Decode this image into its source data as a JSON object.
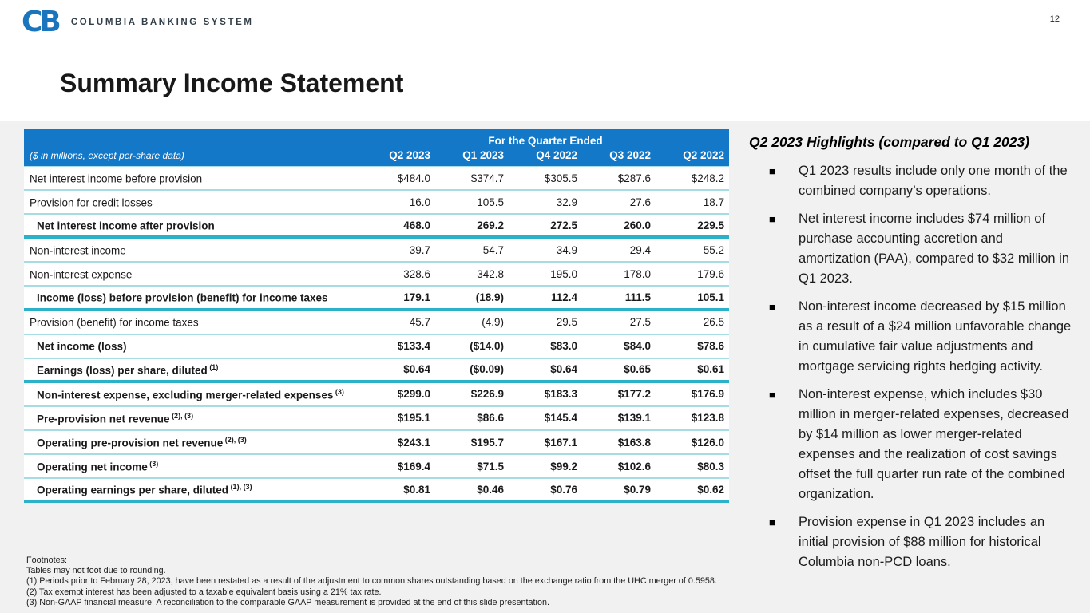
{
  "page_number": "12",
  "brand": {
    "monogram": "CB",
    "name": "COLUMBIA BANKING SYSTEM"
  },
  "title": "Summary Income Statement",
  "table": {
    "span_header": "For the Quarter Ended",
    "unit_note": "($ in millions, except per-share data)",
    "columns": [
      "Q2 2023",
      "Q1 2023",
      "Q4 2022",
      "Q3 2022",
      "Q2 2022"
    ],
    "rows": [
      {
        "label": "Net interest income before provision",
        "sup": "",
        "values": [
          "$484.0",
          "$374.7",
          "$305.5",
          "$287.6",
          "$248.2"
        ],
        "bold": false,
        "indent": false,
        "thick_rule": false
      },
      {
        "label": "Provision for credit losses",
        "sup": "",
        "values": [
          "16.0",
          "105.5",
          "32.9",
          "27.6",
          "18.7"
        ],
        "bold": false,
        "indent": false,
        "thick_rule": false
      },
      {
        "label": "Net interest income after provision",
        "sup": "",
        "values": [
          "468.0",
          "269.2",
          "272.5",
          "260.0",
          "229.5"
        ],
        "bold": true,
        "indent": true,
        "thick_rule": true
      },
      {
        "label": "Non-interest income",
        "sup": "",
        "values": [
          "39.7",
          "54.7",
          "34.9",
          "29.4",
          "55.2"
        ],
        "bold": false,
        "indent": false,
        "thick_rule": false
      },
      {
        "label": "Non-interest expense",
        "sup": "",
        "values": [
          "328.6",
          "342.8",
          "195.0",
          "178.0",
          "179.6"
        ],
        "bold": false,
        "indent": false,
        "thick_rule": false
      },
      {
        "label": "Income (loss) before provision (benefit) for income taxes",
        "sup": "",
        "values": [
          "179.1",
          "(18.9)",
          "112.4",
          "111.5",
          "105.1"
        ],
        "bold": true,
        "indent": true,
        "thick_rule": true
      },
      {
        "label": "Provision (benefit) for income taxes",
        "sup": "",
        "values": [
          "45.7",
          "(4.9)",
          "29.5",
          "27.5",
          "26.5"
        ],
        "bold": false,
        "indent": false,
        "thick_rule": false
      },
      {
        "label": "Net income (loss)",
        "sup": "",
        "values": [
          "$133.4",
          "($14.0)",
          "$83.0",
          "$84.0",
          "$78.6"
        ],
        "bold": true,
        "indent": true,
        "thick_rule": false
      },
      {
        "label": "Earnings (loss) per share, diluted",
        "sup": "(1)",
        "values": [
          "$0.64",
          "($0.09)",
          "$0.64",
          "$0.65",
          "$0.61"
        ],
        "bold": true,
        "indent": true,
        "thick_rule": true
      },
      {
        "label": "Non-interest expense, excluding merger-related expenses",
        "sup": "(3)",
        "values": [
          "$299.0",
          "$226.9",
          "$183.3",
          "$177.2",
          "$176.9"
        ],
        "bold": true,
        "indent": true,
        "thick_rule": false
      },
      {
        "label": "Pre-provision net revenue",
        "sup": "(2), (3)",
        "values": [
          "$195.1",
          "$86.6",
          "$145.4",
          "$139.1",
          "$123.8"
        ],
        "bold": true,
        "indent": true,
        "thick_rule": false
      },
      {
        "label": "Operating pre-provision net revenue",
        "sup": "(2), (3)",
        "values": [
          "$243.1",
          "$195.7",
          "$167.1",
          "$163.8",
          "$126.0"
        ],
        "bold": true,
        "indent": true,
        "thick_rule": false
      },
      {
        "label": "Operating net income",
        "sup": "(3)",
        "values": [
          "$169.4",
          "$71.5",
          "$99.2",
          "$102.6",
          "$80.3"
        ],
        "bold": true,
        "indent": true,
        "thick_rule": false
      },
      {
        "label": "Operating earnings per share, diluted",
        "sup": "(1), (3)",
        "values": [
          "$0.81",
          "$0.46",
          "$0.76",
          "$0.79",
          "$0.62"
        ],
        "bold": true,
        "indent": true,
        "thick_rule": true
      }
    ]
  },
  "highlights": {
    "heading": "Q2 2023 Highlights (compared to Q1 2023)",
    "bullet_glyph": "■",
    "bullets": [
      "Q1 2023 results include only one month of the combined company’s operations.",
      "Net interest income includes $74 million of purchase accounting accretion and amortization (PAA), compared to $32 million in Q1 2023.",
      "Non-interest income decreased by $15 million as a result of a $24 million unfavorable change in cumulative fair value adjustments and mortgage servicing rights hedging activity.",
      "Non-interest expense, which includes $30 million in merger-related expenses, decreased by $14 million as lower merger-related expenses and the realization of cost savings offset the full quarter run rate of the combined organization.",
      "Provision expense in Q1 2023 includes an initial provision of $88 million for historical Columbia non-PCD loans."
    ]
  },
  "footnotes": {
    "title": "Footnotes:",
    "lines": [
      "Tables may not foot due to rounding.",
      "(1) Periods prior to February 28, 2023, have been restated as a result of the adjustment to common shares outstanding based on the exchange ratio from the UHC merger of 0.5958.",
      "(2) Tax exempt interest has been adjusted to a taxable equivalent basis using a 21% tax rate.",
      "(3) Non-GAAP financial measure.  A reconciliation to the comparable GAAP measurement is provided at the end of this slide presentation."
    ]
  },
  "colors": {
    "header_blue": "#1478C8",
    "thin_rule": "#A5DDE2",
    "thick_rule": "#2BB2C8",
    "logo_blue": "#1B75BC",
    "content_bg": "#F1F1F2",
    "brand_text": "#333F48"
  }
}
